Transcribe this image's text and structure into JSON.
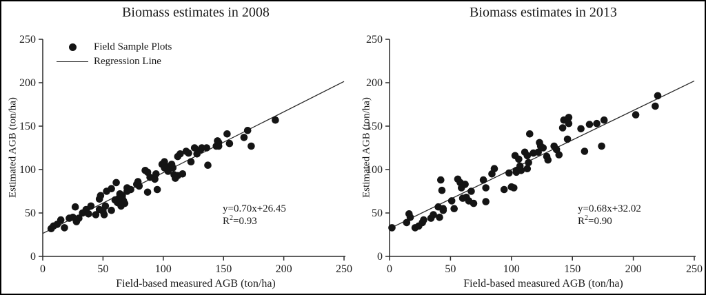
{
  "figure": {
    "background": "#ffffff",
    "border_color": "#000000",
    "text_color": "#1a1a1a",
    "marker_color": "#141414",
    "axis_color": "#2a2a2a"
  },
  "chart_data": [
    {
      "type": "scatter",
      "title": "Biomass estimates in 2008",
      "xlabel": "Field-based measured AGB (ton/ha)",
      "ylabel": "Estimated AGB (ton/ha)",
      "xlim": [
        0,
        250
      ],
      "ylim": [
        0,
        250
      ],
      "xticks": [
        0,
        50,
        100,
        150,
        200,
        250
      ],
      "yticks": [
        0,
        50,
        100,
        150,
        200,
        250
      ],
      "grid": false,
      "legend": {
        "visible": true,
        "position": "top-left",
        "items": [
          {
            "label": "Field Sample Plots",
            "marker": "circle"
          },
          {
            "label": "Regression Line",
            "marker": "line"
          }
        ]
      },
      "regression": {
        "slope": 0.7,
        "intercept": 26.45,
        "x_start": 0,
        "x_end": 250
      },
      "annotation": {
        "equation": "y=0.70x+26.45",
        "r2_prefix": "R",
        "r2_sup": "2",
        "r2_suffix": "=0.93"
      },
      "points": [
        [
          7,
          32
        ],
        [
          9,
          35
        ],
        [
          12,
          37
        ],
        [
          15,
          42
        ],
        [
          18,
          33
        ],
        [
          22,
          44
        ],
        [
          25,
          45
        ],
        [
          28,
          40
        ],
        [
          27,
          57
        ],
        [
          30,
          44
        ],
        [
          33,
          50
        ],
        [
          36,
          54
        ],
        [
          38,
          49
        ],
        [
          40,
          58
        ],
        [
          44,
          48
        ],
        [
          47,
          66
        ],
        [
          47,
          54
        ],
        [
          50,
          52
        ],
        [
          51,
          48
        ],
        [
          53,
          75
        ],
        [
          48,
          70
        ],
        [
          52,
          58
        ],
        [
          57,
          53
        ],
        [
          57,
          78
        ],
        [
          61,
          85
        ],
        [
          64,
          69
        ],
        [
          60,
          65
        ],
        [
          62,
          62
        ],
        [
          63,
          66
        ],
        [
          64,
          72
        ],
        [
          65,
          63
        ],
        [
          66,
          67
        ],
        [
          67,
          64
        ],
        [
          68,
          61
        ],
        [
          65,
          58
        ],
        [
          66,
          70
        ],
        [
          70,
          79
        ],
        [
          70,
          75
        ],
        [
          73,
          77
        ],
        [
          78,
          83
        ],
        [
          80,
          81
        ],
        [
          79,
          86
        ],
        [
          85,
          99
        ],
        [
          87,
          97
        ],
        [
          89,
          91
        ],
        [
          94,
          95
        ],
        [
          93,
          89
        ],
        [
          95,
          77
        ],
        [
          87,
          74
        ],
        [
          99,
          106
        ],
        [
          101,
          109
        ],
        [
          104,
          103
        ],
        [
          107,
          106
        ],
        [
          109,
          94
        ],
        [
          112,
          93
        ],
        [
          116,
          95
        ],
        [
          101,
          102
        ],
        [
          104,
          98
        ],
        [
          108,
          102
        ],
        [
          110,
          90
        ],
        [
          112,
          115
        ],
        [
          114,
          118
        ],
        [
          119,
          121
        ],
        [
          121,
          119
        ],
        [
          123,
          109
        ],
        [
          126,
          125
        ],
        [
          128,
          118
        ],
        [
          131,
          123
        ],
        [
          132,
          125
        ],
        [
          136,
          125
        ],
        [
          137,
          105
        ],
        [
          144,
          127
        ],
        [
          146,
          131
        ],
        [
          153,
          141
        ],
        [
          155,
          130
        ],
        [
          145,
          133
        ],
        [
          146,
          127
        ],
        [
          167,
          137
        ],
        [
          170,
          145
        ],
        [
          173,
          127
        ],
        [
          193,
          157
        ]
      ]
    },
    {
      "type": "scatter",
      "title": "Biomass estimates in 2013",
      "xlabel": "Field-based measured AGB (ton/ha)",
      "ylabel": "Estimated AGB (ton/ha)",
      "xlim": [
        0,
        250
      ],
      "ylim": [
        0,
        250
      ],
      "xticks": [
        0,
        50,
        100,
        150,
        200,
        250
      ],
      "yticks": [
        0,
        50,
        100,
        150,
        200,
        250
      ],
      "grid": false,
      "legend": {
        "visible": false,
        "items": []
      },
      "regression": {
        "slope": 0.68,
        "intercept": 32.02,
        "x_start": 0,
        "x_end": 250
      },
      "annotation": {
        "equation": "y=0.68x+32.02",
        "r2_prefix": "R",
        "r2_sup": "2",
        "r2_suffix": "=0.90"
      },
      "points": [
        [
          2,
          33
        ],
        [
          14,
          39
        ],
        [
          16,
          49
        ],
        [
          17,
          45
        ],
        [
          21,
          33
        ],
        [
          24,
          35
        ],
        [
          27,
          39
        ],
        [
          28,
          42
        ],
        [
          34,
          44
        ],
        [
          36,
          48
        ],
        [
          40,
          57
        ],
        [
          41,
          45
        ],
        [
          42,
          88
        ],
        [
          43,
          76
        ],
        [
          44,
          55
        ],
        [
          44,
          53
        ],
        [
          51,
          64
        ],
        [
          53,
          55
        ],
        [
          56,
          89
        ],
        [
          58,
          85
        ],
        [
          59,
          79
        ],
        [
          60,
          67
        ],
        [
          62,
          83
        ],
        [
          63,
          68
        ],
        [
          65,
          64
        ],
        [
          67,
          75
        ],
        [
          69,
          61
        ],
        [
          77,
          88
        ],
        [
          79,
          79
        ],
        [
          79,
          63
        ],
        [
          84,
          95
        ],
        [
          86,
          101
        ],
        [
          94,
          77
        ],
        [
          98,
          96
        ],
        [
          100,
          80
        ],
        [
          102,
          79
        ],
        [
          104,
          97
        ],
        [
          104,
          99
        ],
        [
          103,
          116
        ],
        [
          106,
          112
        ],
        [
          107,
          104
        ],
        [
          108,
          99
        ],
        [
          111,
          120
        ],
        [
          113,
          101
        ],
        [
          113,
          116
        ],
        [
          114,
          108
        ],
        [
          115,
          141
        ],
        [
          118,
          119
        ],
        [
          122,
          120
        ],
        [
          123,
          131
        ],
        [
          124,
          127
        ],
        [
          126,
          125
        ],
        [
          129,
          115
        ],
        [
          130,
          111
        ],
        [
          135,
          127
        ],
        [
          137,
          123
        ],
        [
          139,
          117
        ],
        [
          142,
          148
        ],
        [
          143,
          157
        ],
        [
          147,
          160
        ],
        [
          147,
          153
        ],
        [
          146,
          135
        ],
        [
          157,
          147
        ],
        [
          160,
          121
        ],
        [
          164,
          152
        ],
        [
          170,
          153
        ],
        [
          174,
          127
        ],
        [
          176,
          157
        ],
        [
          202,
          163
        ],
        [
          218,
          173
        ],
        [
          220,
          185
        ]
      ]
    }
  ]
}
